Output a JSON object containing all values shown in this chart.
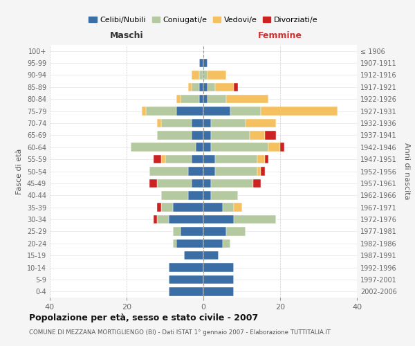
{
  "age_groups": [
    "0-4",
    "5-9",
    "10-14",
    "15-19",
    "20-24",
    "25-29",
    "30-34",
    "35-39",
    "40-44",
    "45-49",
    "50-54",
    "55-59",
    "60-64",
    "65-69",
    "70-74",
    "75-79",
    "80-84",
    "85-89",
    "90-94",
    "95-99",
    "100+"
  ],
  "birth_years": [
    "2002-2006",
    "1997-2001",
    "1992-1996",
    "1987-1991",
    "1982-1986",
    "1977-1981",
    "1972-1976",
    "1967-1971",
    "1962-1966",
    "1957-1961",
    "1952-1956",
    "1947-1951",
    "1942-1946",
    "1937-1941",
    "1932-1936",
    "1927-1931",
    "1922-1926",
    "1917-1921",
    "1912-1916",
    "1907-1911",
    "≤ 1906"
  ],
  "maschi": {
    "celibi": [
      9,
      9,
      9,
      5,
      7,
      6,
      9,
      8,
      4,
      3,
      4,
      3,
      2,
      3,
      3,
      7,
      1,
      1,
      0,
      1,
      0
    ],
    "coniugati": [
      0,
      0,
      0,
      0,
      1,
      2,
      3,
      3,
      7,
      9,
      10,
      7,
      17,
      9,
      8,
      8,
      5,
      2,
      1,
      0,
      0
    ],
    "vedovi": [
      0,
      0,
      0,
      0,
      0,
      0,
      0,
      0,
      0,
      0,
      0,
      1,
      0,
      0,
      1,
      1,
      1,
      1,
      2,
      0,
      0
    ],
    "divorziati": [
      0,
      0,
      0,
      0,
      0,
      0,
      1,
      1,
      0,
      2,
      0,
      2,
      0,
      0,
      0,
      0,
      0,
      0,
      0,
      0,
      0
    ]
  },
  "femmine": {
    "nubili": [
      8,
      8,
      8,
      4,
      5,
      6,
      8,
      5,
      2,
      2,
      3,
      3,
      2,
      2,
      2,
      7,
      1,
      1,
      0,
      1,
      0
    ],
    "coniugate": [
      0,
      0,
      0,
      0,
      2,
      5,
      11,
      3,
      7,
      11,
      11,
      11,
      15,
      10,
      9,
      8,
      5,
      2,
      1,
      0,
      0
    ],
    "vedove": [
      0,
      0,
      0,
      0,
      0,
      0,
      0,
      2,
      0,
      0,
      1,
      2,
      3,
      4,
      8,
      20,
      11,
      5,
      5,
      0,
      0
    ],
    "divorziate": [
      0,
      0,
      0,
      0,
      0,
      0,
      0,
      0,
      0,
      2,
      1,
      1,
      1,
      3,
      0,
      0,
      0,
      1,
      0,
      0,
      0
    ]
  },
  "colors": {
    "celibi": "#3a6ea5",
    "coniugati": "#b5c9a0",
    "vedovi": "#f5c060",
    "divorziati": "#cc2222"
  },
  "title": "Popolazione per età, sesso e stato civile - 2007",
  "subtitle": "COMUNE DI MEZZANA MORTIGLIENGO (BI) - Dati ISTAT 1° gennaio 2007 - Elaborazione TUTTITALIA.IT",
  "xlabel_left": "Maschi",
  "xlabel_right": "Femmine",
  "ylabel_left": "Fasce di età",
  "ylabel_right": "Anni di nascita",
  "xlim": 40,
  "legend_labels": [
    "Celibi/Nubili",
    "Coniugati/e",
    "Vedovi/e",
    "Divorziati/e"
  ],
  "bg_color": "#f5f5f5",
  "plot_bg": "#ffffff"
}
